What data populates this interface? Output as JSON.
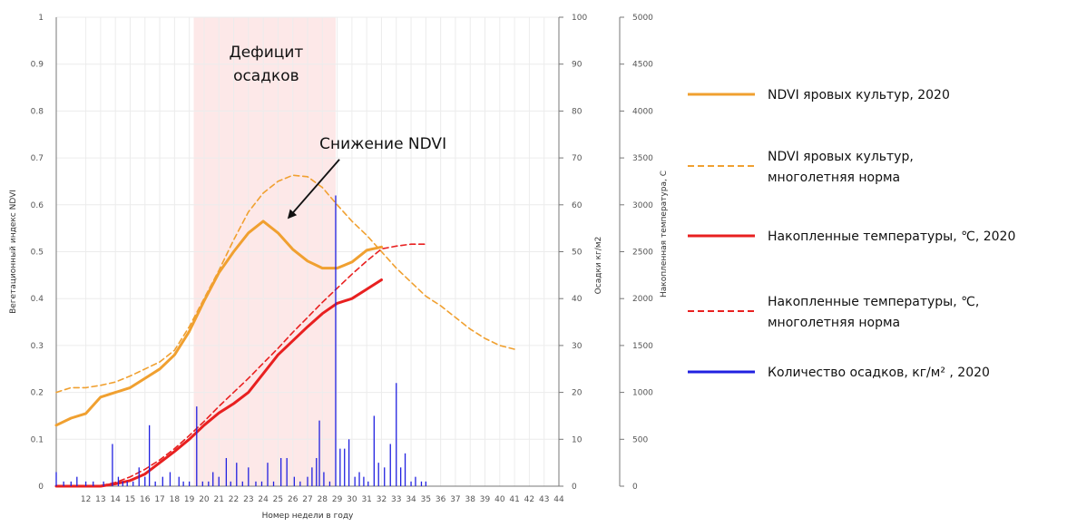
{
  "chart_data": {
    "type": "line",
    "x_axis": {
      "label": "Номер недели в году",
      "range": [
        10,
        44
      ],
      "ticks": [
        12,
        13,
        14,
        15,
        16,
        17,
        18,
        19,
        20,
        21,
        22,
        23,
        24,
        25,
        26,
        27,
        28,
        29,
        30,
        31,
        32,
        33,
        34,
        35,
        36,
        37,
        38,
        39,
        40,
        41,
        42,
        43,
        44
      ]
    },
    "y_axes": {
      "ndvi": {
        "label": "Вегетационный индекс NDVI",
        "range": [
          0,
          1
        ],
        "ticks": [
          "0",
          "0.1",
          "0.2",
          "0.3",
          "0.4",
          "0.5",
          "0.6",
          "0.7",
          "0.8",
          "0.9",
          "1"
        ]
      },
      "precip": {
        "label": "Осадки кг/м2",
        "range": [
          0,
          100
        ],
        "ticks": [
          "0",
          "10",
          "20",
          "30",
          "40",
          "50",
          "60",
          "70",
          "80",
          "90",
          "100"
        ]
      },
      "temp": {
        "label": "Накопленная температура, С",
        "range": [
          0,
          5000
        ],
        "ticks": [
          "0",
          "500",
          "1000",
          "1500",
          "2000",
          "2500",
          "3000",
          "3500",
          "4000",
          "4500",
          "5000"
        ]
      }
    },
    "grid": true,
    "shaded_region": {
      "x_range": [
        19.3,
        28.9
      ],
      "color": "#fde8e8"
    },
    "series": [
      {
        "name": "NDVI яровых культур, 2020",
        "axis": "ndvi",
        "color": "#f0a030",
        "style": "solid",
        "points": [
          [
            10,
            0.13
          ],
          [
            11,
            0.145
          ],
          [
            12,
            0.155
          ],
          [
            13,
            0.19
          ],
          [
            14,
            0.2
          ],
          [
            15,
            0.21
          ],
          [
            16,
            0.23
          ],
          [
            17,
            0.25
          ],
          [
            18,
            0.28
          ],
          [
            19,
            0.33
          ],
          [
            20,
            0.395
          ],
          [
            21,
            0.455
          ],
          [
            22,
            0.5
          ],
          [
            23,
            0.54
          ],
          [
            24,
            0.565
          ],
          [
            25,
            0.54
          ],
          [
            26,
            0.505
          ],
          [
            27,
            0.48
          ],
          [
            28,
            0.465
          ],
          [
            29,
            0.465
          ],
          [
            30,
            0.478
          ],
          [
            31,
            0.503
          ],
          [
            32,
            0.51
          ]
        ]
      },
      {
        "name": "NDVI яровых культур, многолетняя норма",
        "axis": "ndvi",
        "color": "#f0a030",
        "style": "dashed",
        "points": [
          [
            10,
            0.2
          ],
          [
            11,
            0.21
          ],
          [
            12,
            0.21
          ],
          [
            13,
            0.215
          ],
          [
            14,
            0.222
          ],
          [
            15,
            0.235
          ],
          [
            16,
            0.25
          ],
          [
            17,
            0.265
          ],
          [
            18,
            0.29
          ],
          [
            19,
            0.34
          ],
          [
            20,
            0.4
          ],
          [
            21,
            0.46
          ],
          [
            22,
            0.525
          ],
          [
            23,
            0.585
          ],
          [
            24,
            0.625
          ],
          [
            25,
            0.65
          ],
          [
            26,
            0.663
          ],
          [
            27,
            0.66
          ],
          [
            28,
            0.637
          ],
          [
            29,
            0.6
          ],
          [
            30,
            0.565
          ],
          [
            31,
            0.535
          ],
          [
            32,
            0.5
          ],
          [
            33,
            0.465
          ],
          [
            34,
            0.435
          ],
          [
            35,
            0.405
          ],
          [
            36,
            0.385
          ],
          [
            37,
            0.36
          ],
          [
            38,
            0.335
          ],
          [
            39,
            0.315
          ],
          [
            40,
            0.3
          ],
          [
            41,
            0.292
          ]
        ]
      },
      {
        "name": "Накопленные температуры, ℃, 2020",
        "axis": "temp",
        "color": "#e82020",
        "style": "solid",
        "points": [
          [
            10,
            0
          ],
          [
            13,
            0
          ],
          [
            14,
            25
          ],
          [
            15,
            60
          ],
          [
            16,
            130
          ],
          [
            17,
            250
          ],
          [
            18,
            370
          ],
          [
            19,
            500
          ],
          [
            20,
            650
          ],
          [
            21,
            780
          ],
          [
            22,
            880
          ],
          [
            23,
            1000
          ],
          [
            24,
            1200
          ],
          [
            25,
            1400
          ],
          [
            26,
            1550
          ],
          [
            27,
            1700
          ],
          [
            28,
            1840
          ],
          [
            29,
            1950
          ],
          [
            30,
            2000
          ],
          [
            31,
            2100
          ],
          [
            32,
            2200
          ]
        ]
      },
      {
        "name": "Накопленные температуры, ℃, многолетняя норма",
        "axis": "temp",
        "color": "#e82020",
        "style": "dashed",
        "points": [
          [
            10,
            0
          ],
          [
            13,
            5
          ],
          [
            14,
            40
          ],
          [
            15,
            100
          ],
          [
            16,
            180
          ],
          [
            17,
            280
          ],
          [
            18,
            400
          ],
          [
            19,
            540
          ],
          [
            20,
            690
          ],
          [
            21,
            850
          ],
          [
            22,
            1000
          ],
          [
            23,
            1150
          ],
          [
            24,
            1310
          ],
          [
            25,
            1470
          ],
          [
            26,
            1640
          ],
          [
            27,
            1800
          ],
          [
            28,
            1960
          ],
          [
            29,
            2110
          ],
          [
            30,
            2260
          ],
          [
            31,
            2400
          ],
          [
            32,
            2530
          ],
          [
            33,
            2560
          ],
          [
            34,
            2580
          ],
          [
            35,
            2580
          ]
        ]
      },
      {
        "name": "Количество осадков, кг/м², 2020",
        "axis": "precip",
        "color": "#2020e0",
        "style": "bars",
        "points": [
          [
            10,
            3
          ],
          [
            10.5,
            1
          ],
          [
            11,
            1
          ],
          [
            11.4,
            2
          ],
          [
            12,
            1
          ],
          [
            12.5,
            1
          ],
          [
            13.2,
            1
          ],
          [
            13.8,
            9
          ],
          [
            14.2,
            2
          ],
          [
            14.5,
            1
          ],
          [
            14.8,
            1
          ],
          [
            15.2,
            1
          ],
          [
            15.6,
            4
          ],
          [
            16,
            2
          ],
          [
            16.3,
            13
          ],
          [
            16.7,
            1
          ],
          [
            17.2,
            2
          ],
          [
            17.7,
            3
          ],
          [
            18.3,
            2
          ],
          [
            18.6,
            1
          ],
          [
            19,
            1
          ],
          [
            19.5,
            17
          ],
          [
            19.9,
            1
          ],
          [
            20.3,
            1
          ],
          [
            20.6,
            3
          ],
          [
            21,
            2
          ],
          [
            21.5,
            6
          ],
          [
            21.8,
            1
          ],
          [
            22.2,
            5
          ],
          [
            22.6,
            1
          ],
          [
            23,
            4
          ],
          [
            23.5,
            1
          ],
          [
            23.9,
            1
          ],
          [
            24.3,
            5
          ],
          [
            24.7,
            1
          ],
          [
            25.2,
            6
          ],
          [
            25.6,
            6
          ],
          [
            26.1,
            2
          ],
          [
            26.5,
            1
          ],
          [
            27,
            2
          ],
          [
            27.3,
            4
          ],
          [
            27.6,
            6
          ],
          [
            27.8,
            14
          ],
          [
            28.1,
            3
          ],
          [
            28.5,
            1
          ],
          [
            28.9,
            62
          ],
          [
            29.2,
            8
          ],
          [
            29.5,
            8
          ],
          [
            29.8,
            10
          ],
          [
            30.2,
            2
          ],
          [
            30.5,
            3
          ],
          [
            30.8,
            2
          ],
          [
            31.1,
            1
          ],
          [
            31.5,
            15
          ],
          [
            31.8,
            5
          ],
          [
            32.2,
            4
          ],
          [
            32.6,
            9
          ],
          [
            33,
            22
          ],
          [
            33.3,
            4
          ],
          [
            33.6,
            7
          ],
          [
            34,
            1
          ],
          [
            34.3,
            2
          ],
          [
            34.7,
            1
          ],
          [
            35,
            1
          ]
        ]
      }
    ],
    "annotations": [
      {
        "text": "Дефицит",
        "x": 24.2,
        "y": 0.915
      },
      {
        "text": "осадков",
        "x": 24.2,
        "y": 0.865
      },
      {
        "text": "Снижение NDVI",
        "x": 32.1,
        "y": 0.72,
        "arrow_to": [
          25.6,
          0.565
        ]
      }
    ],
    "legend": {
      "placement": "right",
      "entries": [
        {
          "lines": [
            "NDVI яровых культур, 2020"
          ],
          "color": "#f0a030",
          "style": "solid"
        },
        {
          "lines": [
            "NDVI яровых культур,",
            "многолетняя норма"
          ],
          "color": "#f0a030",
          "style": "dashed"
        },
        {
          "lines": [
            "Накопленные температуры, ℃, 2020"
          ],
          "color": "#e82020",
          "style": "solid"
        },
        {
          "lines": [
            "Накопленные температуры, ℃,",
            "многолетняя норма"
          ],
          "color": "#e82020",
          "style": "dashed"
        },
        {
          "lines": [
            "Количество осадков, кг/м² , 2020"
          ],
          "color": "#2020e0",
          "style": "solid"
        }
      ]
    }
  }
}
